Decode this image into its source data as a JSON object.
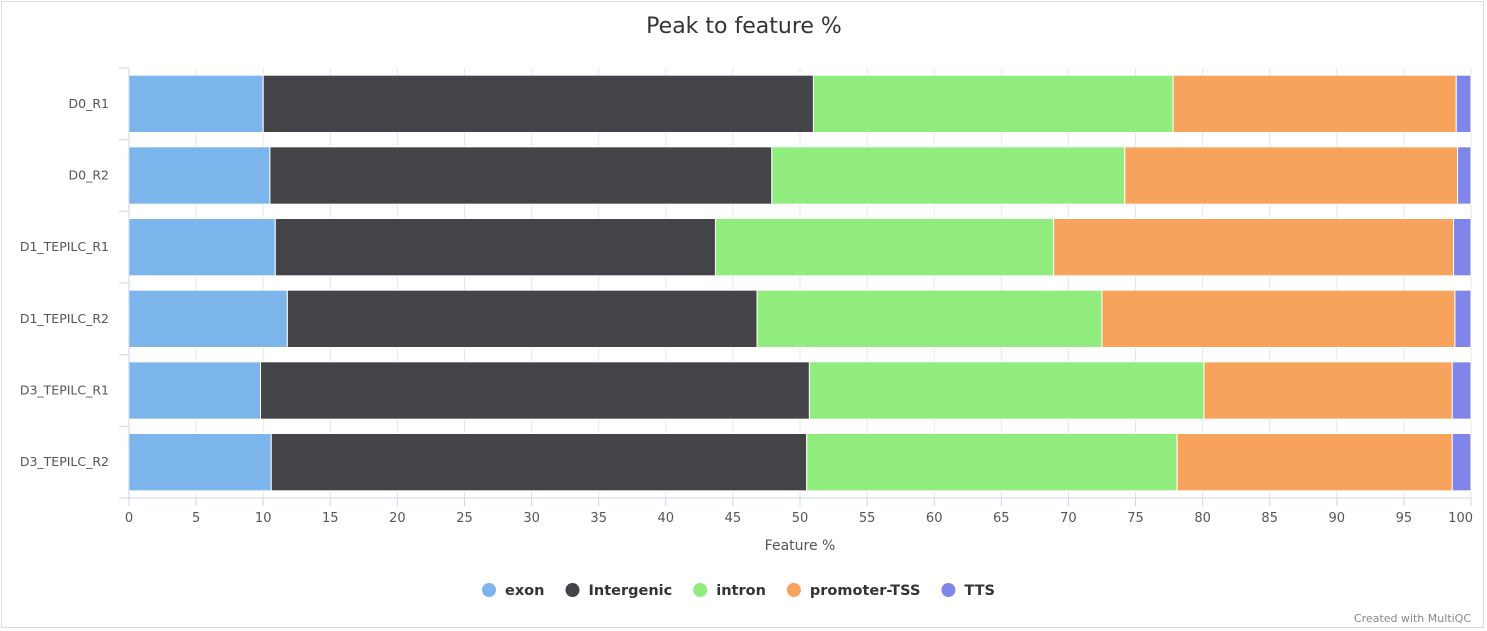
{
  "chart_data": {
    "type": "bar",
    "orientation": "horizontal",
    "stacked": "percent",
    "title": "Peak to feature %",
    "xlabel": "Feature %",
    "ylabel": "",
    "xlim": [
      0,
      100
    ],
    "xticks": [
      0,
      5,
      10,
      15,
      20,
      25,
      30,
      35,
      40,
      45,
      50,
      55,
      60,
      65,
      70,
      75,
      80,
      85,
      90,
      95,
      100
    ],
    "grid": true,
    "legend_position": "bottom",
    "categories": [
      "D0_R1",
      "D0_R2",
      "D1_TEPILC_R1",
      "D1_TEPILC_R2",
      "D3_TEPILC_R1",
      "D3_TEPILC_R2"
    ],
    "series": [
      {
        "name": "exon",
        "color": "#7cb5ec",
        "values": [
          10.0,
          10.5,
          10.9,
          11.8,
          9.8,
          10.6
        ]
      },
      {
        "name": "Intergenic",
        "color": "#434348",
        "values": [
          41.0,
          37.4,
          32.8,
          35.0,
          40.9,
          39.9
        ]
      },
      {
        "name": "intron",
        "color": "#90ed7d",
        "values": [
          26.8,
          26.3,
          25.2,
          25.7,
          29.4,
          27.6
        ]
      },
      {
        "name": "promoter-TSS",
        "color": "#f7a35c",
        "values": [
          21.1,
          24.8,
          29.8,
          26.3,
          18.5,
          20.5
        ]
      },
      {
        "name": "TTS",
        "color": "#8085e9",
        "values": [
          1.1,
          1.0,
          1.3,
          1.2,
          1.4,
          1.4
        ]
      }
    ]
  },
  "credit": "Created with MultiQC"
}
